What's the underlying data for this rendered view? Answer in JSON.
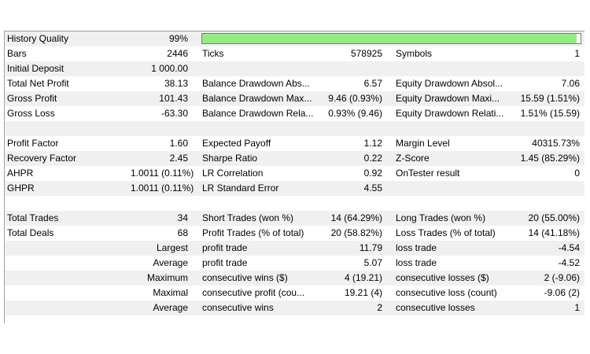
{
  "history_quality": {
    "label": "History Quality",
    "value": "99%",
    "fraction": 0.99,
    "bar_color": "#90ee80"
  },
  "rows": [
    {
      "c1": "Bars",
      "c2": "2446",
      "c3": "Ticks",
      "c4": "578925",
      "c5": "Symbols",
      "c6": "1"
    },
    {
      "c1": "Initial Deposit",
      "c2": "1 000.00",
      "c3": "",
      "c4": "",
      "c5": "",
      "c6": ""
    },
    {
      "c1": "Total Net Profit",
      "c2": "38.13",
      "c3": "Balance Drawdown Abs...",
      "c4": "6.57",
      "c5": "Equity Drawdown Absol...",
      "c6": "7.06"
    },
    {
      "c1": "Gross Profit",
      "c2": "101.43",
      "c3": "Balance Drawdown Max...",
      "c4": "9.46 (0.93%)",
      "c5": "Equity Drawdown Maxi...",
      "c6": "15.59 (1.51%)"
    },
    {
      "c1": "Gross Loss",
      "c2": "-63.30",
      "c3": "Balance Drawdown Rela...",
      "c4": "0.93% (9.46)",
      "c5": "Equity Drawdown Relati...",
      "c6": "1.51% (15.59)"
    },
    {
      "c1": "",
      "c2": "",
      "c3": "",
      "c4": "",
      "c5": "",
      "c6": ""
    },
    {
      "c1": "Profit Factor",
      "c2": "1.60",
      "c3": "Expected Payoff",
      "c4": "1.12",
      "c5": "Margin Level",
      "c6": "40315.73%"
    },
    {
      "c1": "Recovery Factor",
      "c2": "2.45",
      "c3": "Sharpe Ratio",
      "c4": "0.22",
      "c5": "Z-Score",
      "c6": "1.45 (85.29%)"
    },
    {
      "c1": "AHPR",
      "c2": "1.0011 (0.11%)",
      "c3": "LR Correlation",
      "c4": "0.92",
      "c5": "OnTester result",
      "c6": "0"
    },
    {
      "c1": "GHPR",
      "c2": "1.0011 (0.11%)",
      "c3": "LR Standard Error",
      "c4": "4.55",
      "c5": "",
      "c6": ""
    },
    {
      "c1": "",
      "c2": "",
      "c3": "",
      "c4": "",
      "c5": "",
      "c6": ""
    },
    {
      "c1": "Total Trades",
      "c2": "34",
      "c3": "Short Trades (won %)",
      "c4": "14 (64.29%)",
      "c5": "Long Trades (won %)",
      "c6": "20 (55.00%)"
    },
    {
      "c1": "Total Deals",
      "c2": "68",
      "c3": "Profit Trades (% of total)",
      "c4": "20 (58.82%)",
      "c5": "Loss Trades (% of total)",
      "c6": "14 (41.18%)"
    },
    {
      "c1r": "Largest",
      "c3": "profit trade",
      "c4": "11.79",
      "c5": "loss trade",
      "c6": "-4.54"
    },
    {
      "c1r": "Average",
      "c3": "profit trade",
      "c4": "5.07",
      "c5": "loss trade",
      "c6": "-4.52"
    },
    {
      "c1r": "Maximum",
      "c3": "consecutive wins ($)",
      "c4": "4 (19.21)",
      "c5": "consecutive losses ($)",
      "c6": "2 (-9.06)"
    },
    {
      "c1r": "Maximal",
      "c3": "consecutive profit (cou...",
      "c4": "19.21 (4)",
      "c5": "consecutive loss (count)",
      "c6": "-9.06 (2)"
    },
    {
      "c1r": "Average",
      "c3": "consecutive wins",
      "c4": "2",
      "c5": "consecutive losses",
      "c6": "1"
    }
  ]
}
